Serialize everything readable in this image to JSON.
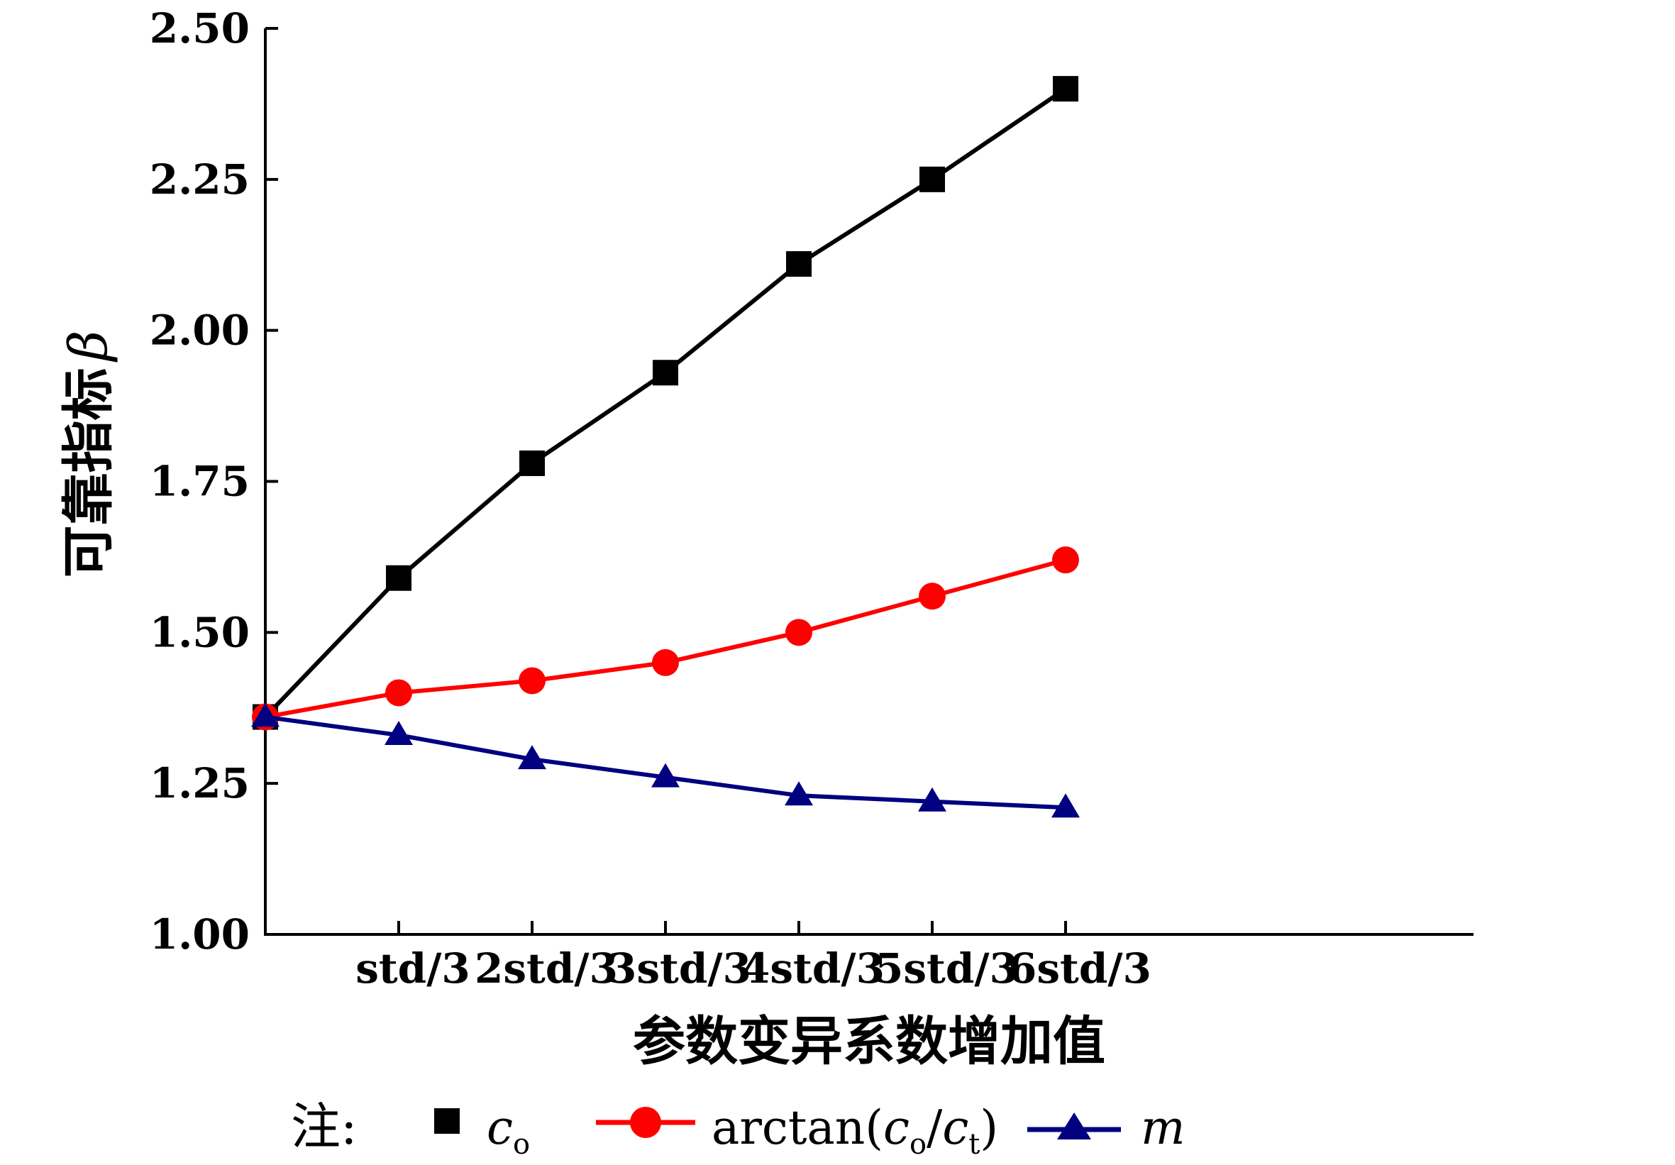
{
  "chart_data": {
    "type": "line",
    "xlabel": "参数变异系数增加值",
    "ylabel": "可靠指标",
    "ylabel_symbol": "β",
    "categories": [
      "",
      "std/3",
      "2std/3",
      "3std/3",
      "4std/3",
      "5std/3",
      "6std/3"
    ],
    "yticks": [
      "1.00",
      "1.25",
      "1.50",
      "1.75",
      "2.00",
      "2.25",
      "2.50"
    ],
    "ylim": [
      1.0,
      2.5
    ],
    "grid": false,
    "legend_position": "bottom",
    "legend_prefix": "注:",
    "series": [
      {
        "name": "c_o",
        "label_base": "c",
        "label_sub": "o",
        "color": "#000000",
        "marker": "square",
        "values": [
          1.36,
          1.59,
          1.78,
          1.93,
          2.11,
          2.25,
          2.4
        ]
      },
      {
        "name": "arctan(c_o/c_t)",
        "label_prefix": "arctan(",
        "label_base1": "c",
        "label_sub1": "o",
        "label_mid": "/",
        "label_base2": "c",
        "label_sub2": "t",
        "label_suffix": ")",
        "color": "#ff0000",
        "marker": "circle",
        "values": [
          1.36,
          1.4,
          1.42,
          1.45,
          1.5,
          1.56,
          1.62
        ]
      },
      {
        "name": "m",
        "label_base": "m",
        "color": "#000080",
        "marker": "triangle",
        "values": [
          1.36,
          1.33,
          1.29,
          1.26,
          1.23,
          1.22,
          1.21
        ]
      }
    ]
  }
}
